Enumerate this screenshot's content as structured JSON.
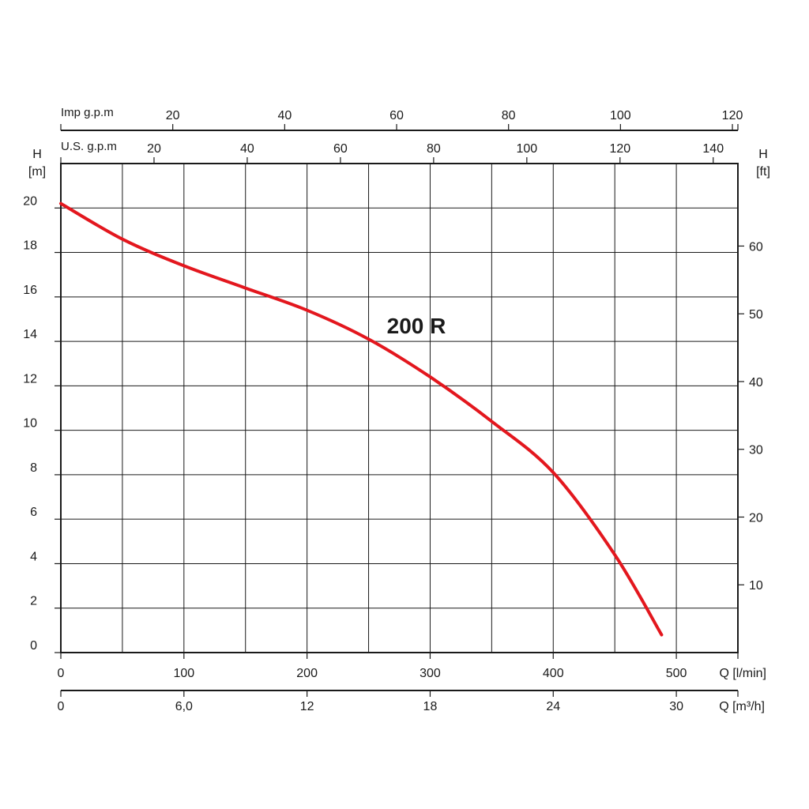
{
  "chart_data": {
    "type": "line",
    "title": "",
    "curve_label": "200 R",
    "series": [
      {
        "name": "200 R",
        "color": "#e3171e",
        "x": [
          0,
          50,
          100,
          150,
          200,
          250,
          300,
          350,
          400,
          450,
          488
        ],
        "y": [
          20.2,
          18.6,
          17.4,
          16.4,
          15.4,
          14.1,
          12.4,
          10.4,
          8.1,
          4.4,
          0.8
        ]
      }
    ],
    "axes": {
      "x_main": {
        "label": "Q [l/min]",
        "range": [
          0,
          550
        ],
        "ticks": [
          0,
          100,
          200,
          300,
          400,
          500
        ],
        "tick_labels": [
          "0",
          "100",
          "200",
          "300",
          "400",
          "500"
        ],
        "grid_step": 50
      },
      "x_m3h": {
        "label": "Q [m³/h]",
        "ticks": [
          0,
          6,
          12,
          18,
          24,
          30
        ],
        "tick_labels": [
          "0",
          "6,0",
          "12",
          "18",
          "24",
          "30"
        ]
      },
      "x_usgpm": {
        "label": "U.S. g.p.m",
        "ticks": [
          20,
          40,
          60,
          80,
          100,
          120,
          140
        ],
        "tick_labels": [
          "20",
          "40",
          "60",
          "80",
          "100",
          "120",
          "140"
        ]
      },
      "x_impgpm": {
        "label": "Imp g.p.m",
        "ticks": [
          20,
          40,
          60,
          80,
          100,
          120
        ],
        "tick_labels": [
          "20",
          "40",
          "60",
          "80",
          "100",
          "120"
        ]
      },
      "y_left": {
        "label_top": "H",
        "label_unit": "[m]",
        "range": [
          0,
          22
        ],
        "ticks": [
          0,
          2,
          4,
          6,
          8,
          10,
          12,
          14,
          16,
          18,
          20
        ],
        "tick_labels": [
          "0",
          "2",
          "4",
          "6",
          "8",
          "10",
          "12",
          "14",
          "16",
          "18",
          "20"
        ]
      },
      "y_right": {
        "label_top": "H",
        "label_unit": "[ft]",
        "ticks": [
          10,
          20,
          30,
          40,
          50,
          60
        ],
        "tick_labels": [
          "10",
          "20",
          "30",
          "40",
          "50",
          "60"
        ]
      }
    },
    "grid": true
  }
}
